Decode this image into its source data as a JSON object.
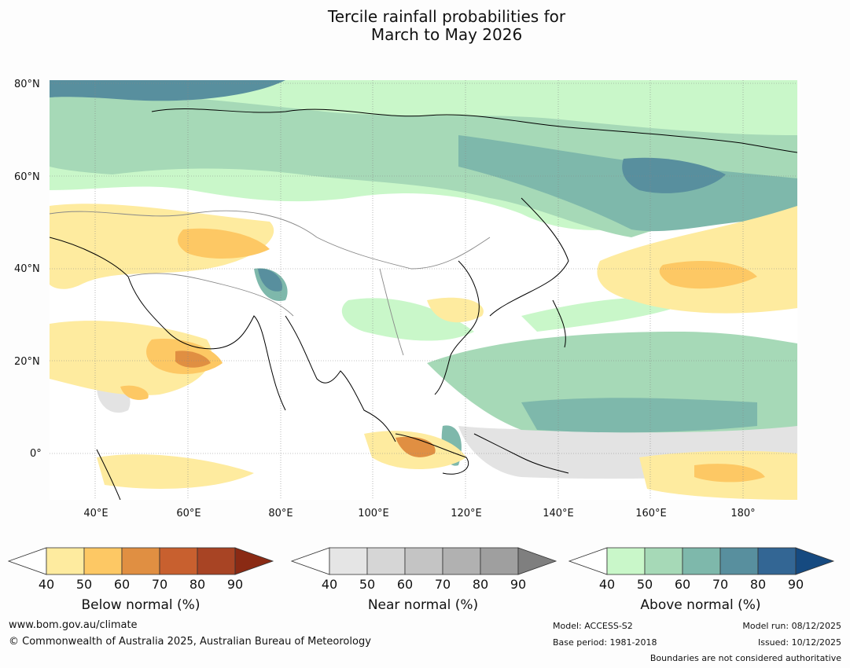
{
  "title_line1": "Tercile rainfall probabilities for",
  "title_line2": "March to May 2026",
  "map": {
    "lat_labels": [
      "80°N",
      "60°N",
      "40°N",
      "20°N",
      "0°"
    ],
    "lon_labels": [
      "40°E",
      "60°E",
      "80°E",
      "100°E",
      "120°E",
      "140°E",
      "160°E",
      "180°"
    ]
  },
  "colorbars": {
    "below": {
      "label": "Below normal (%)",
      "ticks": [
        "40",
        "50",
        "60",
        "70",
        "80",
        "90"
      ],
      "colors": [
        "#ffffff",
        "#feeb9f",
        "#fdc864",
        "#e08f42",
        "#c8602f",
        "#a84424",
        "#8a2a14"
      ]
    },
    "near": {
      "label": "Near normal (%)",
      "ticks": [
        "40",
        "50",
        "60",
        "70",
        "80",
        "90"
      ],
      "colors": [
        "#ffffff",
        "#e5e5e5",
        "#d6d6d6",
        "#c4c4c4",
        "#b1b1b1",
        "#9f9f9f",
        "#7f7f7f"
      ]
    },
    "above": {
      "label": "Above normal (%)",
      "ticks": [
        "40",
        "50",
        "60",
        "70",
        "80",
        "90"
      ],
      "colors": [
        "#ffffff",
        "#c9f7c9",
        "#a6d9b7",
        "#7eb8ab",
        "#588f9e",
        "#336694",
        "#164a80"
      ]
    }
  },
  "footer": {
    "website": "www.bom.gov.au/climate",
    "copyright": "© Commonwealth of Australia 2025, Australian Bureau of Meteorology",
    "model": "Model: ACCESS-S2",
    "base_period": "Base period: 1981-2018",
    "model_run": "Model run: 08/12/2025",
    "issued": "Issued: 10/12/2025",
    "disclaimer": "Boundaries are not considered authoritative"
  }
}
